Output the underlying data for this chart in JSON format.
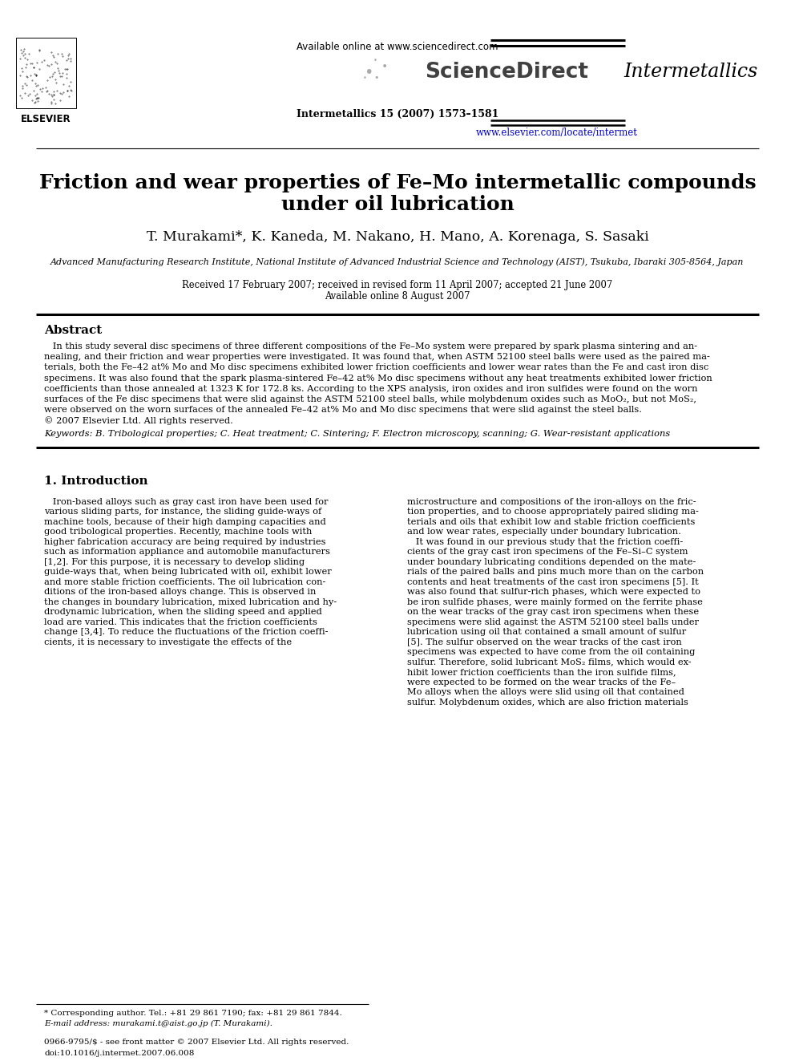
{
  "bg_color": "#ffffff",
  "title_paper_line1": "Friction and wear properties of Fe–Mo intermetallic compounds",
  "title_paper_line2": "under oil lubrication",
  "authors": "T. Murakami*, K. Kaneda, M. Nakano, H. Mano, A. Korenaga, S. Sasaki",
  "affiliation": "Advanced Manufacturing Research Institute, National Institute of Advanced Industrial Science and Technology (AIST), Tsukuba, Ibaraki 305-8564, Japan",
  "date_line1": "Received 17 February 2007; received in revised form 11 April 2007; accepted 21 June 2007",
  "date_line2": "Available online 8 August 2007",
  "journal_avail": "Available online at www.sciencedirect.com",
  "journal_sd": "ScienceDirect",
  "journal_name_right": "Intermetallics",
  "journal_info": "Intermetallics 15 (2007) 1573–1581",
  "journal_url": "www.elsevier.com/locate/intermet",
  "abstract_title": "Abstract",
  "abstract_lines": [
    "   In this study several disc specimens of three different compositions of the Fe–Mo system were prepared by spark plasma sintering and an-",
    "nealing, and their friction and wear properties were investigated. It was found that, when ASTM 52100 steel balls were used as the paired ma-",
    "terials, both the Fe–42 at% Mo and Mo disc specimens exhibited lower friction coefficients and lower wear rates than the Fe and cast iron disc",
    "specimens. It was also found that the spark plasma-sintered Fe–42 at% Mo disc specimens without any heat treatments exhibited lower friction",
    "coefficients than those annealed at 1323 K for 172.8 ks. According to the XPS analysis, iron oxides and iron sulfides were found on the worn",
    "surfaces of the Fe disc specimens that were slid against the ASTM 52100 steel balls, while molybdenum oxides such as MoO₂, but not MoS₂,",
    "were observed on the worn surfaces of the annealed Fe–42 at% Mo and Mo disc specimens that were slid against the steel balls.",
    "© 2007 Elsevier Ltd. All rights reserved."
  ],
  "keywords_line": "Keywords: B. Tribological properties; C. Heat treatment; C. Sintering; F. Electron microscopy, scanning; G. Wear-resistant applications",
  "sec1_title": "1. Introduction",
  "intro_col1": [
    "   Iron-based alloys such as gray cast iron have been used for",
    "various sliding parts, for instance, the sliding guide-ways of",
    "machine tools, because of their high damping capacities and",
    "good tribological properties. Recently, machine tools with",
    "higher fabrication accuracy are being required by industries",
    "such as information appliance and automobile manufacturers",
    "[1,2]. For this purpose, it is necessary to develop sliding",
    "guide-ways that, when being lubricated with oil, exhibit lower",
    "and more stable friction coefficients. The oil lubrication con-",
    "ditions of the iron-based alloys change. This is observed in",
    "the changes in boundary lubrication, mixed lubrication and hy-",
    "drodynamic lubrication, when the sliding speed and applied",
    "load are varied. This indicates that the friction coefficients",
    "change [3,4]. To reduce the fluctuations of the friction coeffi-",
    "cients, it is necessary to investigate the effects of the"
  ],
  "intro_col2": [
    "microstructure and compositions of the iron-alloys on the fric-",
    "tion properties, and to choose appropriately paired sliding ma-",
    "terials and oils that exhibit low and stable friction coefficients",
    "and low wear rates, especially under boundary lubrication.",
    "   It was found in our previous study that the friction coeffi-",
    "cients of the gray cast iron specimens of the Fe–Si–C system",
    "under boundary lubricating conditions depended on the mate-",
    "rials of the paired balls and pins much more than on the carbon",
    "contents and heat treatments of the cast iron specimens [5]. It",
    "was also found that sulfur-rich phases, which were expected to",
    "be iron sulfide phases, were mainly formed on the ferrite phase",
    "on the wear tracks of the gray cast iron specimens when these",
    "specimens were slid against the ASTM 52100 steel balls under",
    "lubrication using oil that contained a small amount of sulfur",
    "[5]. The sulfur observed on the wear tracks of the cast iron",
    "specimens was expected to have come from the oil containing",
    "sulfur. Therefore, solid lubricant MoS₂ films, which would ex-",
    "hibit lower friction coefficients than the iron sulfide films,",
    "were expected to be formed on the wear tracks of the Fe–",
    "Mo alloys when the alloys were slid using oil that contained",
    "sulfur. Molybdenum oxides, which are also friction materials"
  ],
  "footer_note1": "* Corresponding author. Tel.: +81 29 861 7190; fax: +81 29 861 7844.",
  "footer_note2": "E-mail address: murakami.t@aist.go.jp (T. Murakami).",
  "footer_copy1": "0966-9795/$ - see front matter © 2007 Elsevier Ltd. All rights reserved.",
  "footer_copy2": "doi:10.1016/j.intermet.2007.06.008"
}
